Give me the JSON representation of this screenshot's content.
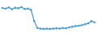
{
  "chart_data": {
    "type": "line",
    "categories": [
      null,
      null,
      null,
      null,
      null,
      null,
      null,
      null,
      null,
      null,
      null,
      null,
      null,
      null,
      null,
      null,
      null,
      null,
      null,
      null,
      null,
      null,
      null,
      null,
      null,
      null,
      null,
      null,
      null,
      null
    ],
    "values": [
      82,
      80,
      84,
      78,
      83,
      81,
      85,
      79,
      80,
      76,
      40,
      18,
      16,
      15,
      16,
      15,
      16,
      17,
      16,
      18,
      17,
      20,
      22,
      24,
      25,
      27,
      30,
      33,
      40,
      36
    ],
    "color": "#4a9fd8",
    "marker": "circle",
    "ylim": [
      0,
      100
    ],
    "tick_labels": false,
    "grid": false
  }
}
